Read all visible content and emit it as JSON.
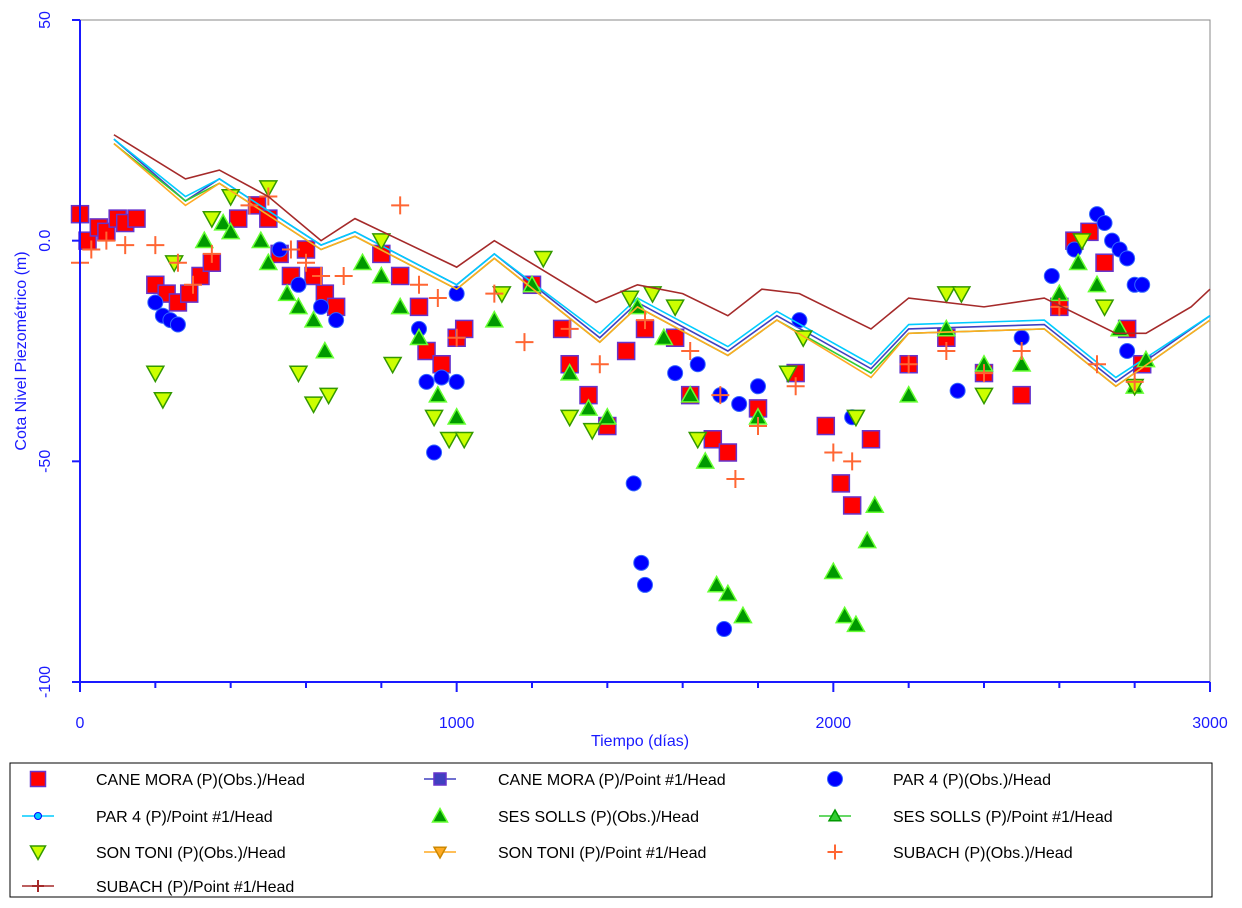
{
  "chart_data": {
    "type": "scatter",
    "x_label": "Tiempo (días)",
    "y_label": "Cota Nivel Piezométrico (m)",
    "xlim": [
      0,
      3000
    ],
    "ylim": [
      -100,
      50
    ],
    "xticks": [
      0,
      1000,
      2000,
      3000
    ],
    "x_minor_ticks": [
      200,
      400,
      600,
      800,
      1200,
      1400,
      1600,
      1800,
      2200,
      2400,
      2600,
      2800
    ],
    "yticks": [
      {
        "value": -100,
        "label": "-100"
      },
      -50,
      {
        "value": 0,
        "label": "0.0"
      },
      50
    ],
    "series": [
      {
        "name": "CANE MORA (P)(Obs.)/Head",
        "style": "markers",
        "marker": "square",
        "color": "#ff0000",
        "edge": "#6633cc",
        "x": [
          0,
          20,
          50,
          70,
          100,
          120,
          150,
          200,
          230,
          260,
          290,
          320,
          350,
          420,
          470,
          500,
          530,
          560,
          600,
          620,
          650,
          680,
          800,
          850,
          900,
          920,
          960,
          1000,
          1020,
          1200,
          1280,
          1300,
          1350,
          1400,
          1450,
          1500,
          1580,
          1620,
          1680,
          1720,
          1800,
          1900,
          1980,
          2020,
          2050,
          2100,
          2200,
          2300,
          2400,
          2500,
          2600,
          2640,
          2680,
          2720,
          2780,
          2820
        ],
        "values": [
          6,
          0,
          3,
          2,
          5,
          4,
          5,
          -10,
          -12,
          -14,
          -12,
          -8,
          -5,
          5,
          8,
          5,
          -3,
          -8,
          -2,
          -8,
          -12,
          -15,
          -3,
          -8,
          -15,
          -25,
          -28,
          -22,
          -20,
          -10,
          -20,
          -28,
          -35,
          -42,
          -25,
          -20,
          -22,
          -35,
          -45,
          -48,
          -38,
          -30,
          -42,
          -55,
          -60,
          -45,
          -28,
          -22,
          -30,
          -35,
          -15,
          0,
          2,
          -5,
          -20,
          -28
        ]
      },
      {
        "name": "CANE MORA (P)/Point #1/Head",
        "style": "line",
        "marker": "square",
        "color": "#4040c0",
        "edge": "#6633cc",
        "x": [
          90,
          280,
          370,
          640,
          730,
          1000,
          1100,
          1380,
          1480,
          1720,
          1850,
          2100,
          2200,
          2560,
          2750,
          3000
        ],
        "values": [
          23,
          9,
          14,
          -1,
          2,
          -10,
          -3,
          -22,
          -14,
          -25,
          -17,
          -29,
          -20,
          -19,
          -32,
          -17
        ]
      },
      {
        "name": "PAR 4 (P)(Obs.)/Head",
        "style": "markers",
        "marker": "circle",
        "color": "#0000ff",
        "edge": "#3366ff",
        "x": [
          200,
          220,
          240,
          260,
          530,
          580,
          640,
          680,
          900,
          920,
          940,
          960,
          1000,
          1000,
          1470,
          1490,
          1500,
          1580,
          1640,
          1700,
          1710,
          1750,
          1800,
          1910,
          2050,
          2330,
          2500,
          2580,
          2640,
          2700,
          2720,
          2740,
          2760,
          2780,
          2800,
          2820,
          2780
        ],
        "values": [
          -14,
          -17,
          -18,
          -19,
          -2,
          -10,
          -15,
          -18,
          -20,
          -32,
          -48,
          -31,
          -32,
          -12,
          -55,
          -73,
          -78,
          -30,
          -28,
          -35,
          -88,
          -37,
          -33,
          -18,
          -40,
          -34,
          -22,
          -8,
          -2,
          6,
          4,
          0,
          -2,
          -4,
          -10,
          -10,
          -25
        ]
      },
      {
        "name": "PAR 4 (P)/Point #1/Head",
        "style": "line",
        "marker": "circle",
        "color": "#00ccff",
        "edge": "#0000ff",
        "x": [
          90,
          280,
          370,
          640,
          730,
          1000,
          1100,
          1380,
          1480,
          1720,
          1850,
          2100,
          2200,
          2560,
          2750,
          3000
        ],
        "values": [
          23,
          10,
          14,
          -1,
          2,
          -10,
          -3,
          -21,
          -13,
          -24,
          -16,
          -28,
          -19,
          -18,
          -31,
          -17
        ]
      },
      {
        "name": "SES SOLLS (P)(Obs.)/Head",
        "style": "markers",
        "marker": "triangle-up",
        "color": "#009900",
        "edge": "#66ff33",
        "x": [
          330,
          380,
          400,
          480,
          500,
          550,
          580,
          620,
          650,
          750,
          800,
          850,
          900,
          950,
          1000,
          1100,
          1200,
          1300,
          1350,
          1400,
          1480,
          1550,
          1620,
          1660,
          1690,
          1720,
          1760,
          1800,
          2000,
          2030,
          2060,
          2090,
          2110,
          2200,
          2300,
          2400,
          2500,
          2600,
          2650,
          2700,
          2760,
          2800,
          2830
        ],
        "values": [
          0,
          4,
          2,
          0,
          -5,
          -12,
          -15,
          -18,
          -25,
          -5,
          -8,
          -15,
          -22,
          -35,
          -40,
          -18,
          -10,
          -30,
          -38,
          -40,
          -15,
          -22,
          -35,
          -50,
          -78,
          -80,
          -85,
          -40,
          -75,
          -85,
          -87,
          -68,
          -60,
          -35,
          -20,
          -28,
          -28,
          -12,
          -5,
          -10,
          -20,
          -33,
          -27
        ]
      },
      {
        "name": "SES SOLLS (P)/Point #1/Head",
        "style": "line",
        "marker": "triangle-up",
        "color": "#33cc33",
        "edge": "#009900",
        "x": [
          90,
          280,
          370,
          640,
          730,
          1000,
          1100,
          1380,
          1480,
          1720,
          1850,
          2100,
          2200,
          2560,
          2750,
          3000
        ],
        "values": [
          22,
          9,
          13,
          -2,
          1,
          -11,
          -4,
          -23,
          -15,
          -26,
          -18,
          -30,
          -21,
          -20,
          -33,
          -18
        ]
      },
      {
        "name": "SON TONI (P)(Obs.)/Head",
        "style": "markers",
        "marker": "triangle-down",
        "color": "#ccff00",
        "edge": "#339900",
        "x": [
          200,
          220,
          250,
          350,
          400,
          500,
          580,
          620,
          660,
          800,
          830,
          940,
          980,
          1020,
          1120,
          1230,
          1300,
          1360,
          1460,
          1520,
          1580,
          1640,
          1880,
          1920,
          2060,
          2300,
          2340,
          2400,
          2660,
          2720,
          2800
        ],
        "values": [
          -30,
          -36,
          -5,
          5,
          10,
          12,
          -30,
          -37,
          -35,
          0,
          -28,
          -40,
          -45,
          -45,
          -12,
          -4,
          -40,
          -43,
          -13,
          -12,
          -15,
          -45,
          -30,
          -22,
          -40,
          -12,
          -12,
          -35,
          0,
          -15,
          -33
        ]
      },
      {
        "name": "SON TONI (P)/Point #1/Head",
        "style": "line",
        "marker": "triangle-down",
        "color": "#ffaa22",
        "edge": "#cc8800",
        "x": [
          90,
          280,
          370,
          640,
          730,
          1000,
          1100,
          1380,
          1480,
          1720,
          1850,
          2100,
          2200,
          2560,
          2750,
          3000
        ],
        "values": [
          22,
          8,
          13,
          -2,
          1,
          -11,
          -4,
          -23,
          -15,
          -26,
          -18,
          -31,
          -21,
          -20,
          -33,
          -18
        ]
      },
      {
        "name": "SUBACH (P)(Obs.)/Head",
        "style": "markers",
        "marker": "plus",
        "color": "#ff6633",
        "edge": "#ff6633",
        "x": [
          0,
          30,
          70,
          120,
          200,
          260,
          300,
          350,
          450,
          500,
          560,
          600,
          640,
          700,
          850,
          900,
          950,
          1000,
          1100,
          1180,
          1300,
          1380,
          1500,
          1620,
          1700,
          1740,
          1800,
          1900,
          2000,
          2050,
          2200,
          2300,
          2400,
          2500,
          2600,
          2700,
          2800
        ],
        "values": [
          -5,
          -2,
          0,
          -1,
          -1,
          -5,
          -10,
          -3,
          8,
          10,
          -2,
          -5,
          -8,
          -8,
          8,
          -10,
          -13,
          -22,
          -12,
          -23,
          -20,
          -28,
          -18,
          -25,
          -35,
          -54,
          -42,
          -33,
          -48,
          -50,
          -28,
          -25,
          -30,
          -25,
          -15,
          -28,
          -32
        ]
      },
      {
        "name": "SUBACH (P)/Point #1/Head",
        "style": "line",
        "marker": "plus",
        "color": "#a52a2a",
        "edge": "#a52a2a",
        "x": [
          90,
          280,
          370,
          500,
          640,
          730,
          1000,
          1100,
          1370,
          1480,
          1600,
          1720,
          1810,
          1910,
          2100,
          2200,
          2400,
          2560,
          2750,
          2830,
          2950,
          3000
        ],
        "values": [
          24,
          14,
          16,
          10,
          0,
          5,
          -6,
          0,
          -14,
          -10,
          -12,
          -17,
          -11,
          -12,
          -20,
          -13,
          -15,
          -13,
          -21,
          -21,
          -15,
          -11
        ]
      }
    ]
  }
}
